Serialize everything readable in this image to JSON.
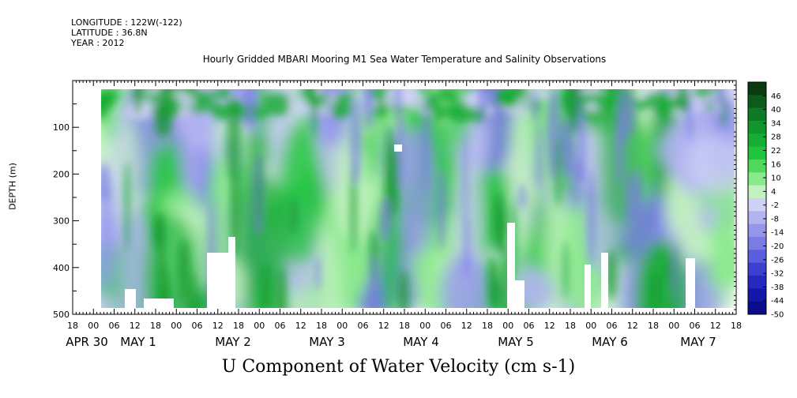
{
  "header": {
    "longitude": "LONGITUDE : 122W(-122)",
    "latitude": "LATITUDE : 36.8N",
    "year": "YEAR : 2012"
  },
  "chart_data": {
    "type": "heatmap",
    "title": "Hourly Gridded MBARI Mooring M1 Sea Water Temperature and Salinity Observations",
    "ylabel": "DEPTH (m)",
    "xlabel": "U Component of Water Velocity (cm s-1)",
    "y_axis": {
      "inverted": true,
      "ylim": [
        0,
        500
      ],
      "ticks": [
        100,
        200,
        300,
        400,
        500
      ],
      "tick_labels": [
        "100",
        "200",
        "300",
        "400",
        "500"
      ]
    },
    "x_axis": {
      "hour_ticks": [
        "18",
        "00",
        "06",
        "12",
        "18",
        "00",
        "06",
        "12",
        "18",
        "00",
        "06",
        "12",
        "18",
        "00",
        "06",
        "12",
        "18",
        "00",
        "06",
        "12",
        "18",
        "00",
        "06",
        "12",
        "18",
        "00",
        "06",
        "12",
        "18",
        "00",
        "06",
        "12",
        "18"
      ],
      "date_labels": [
        "APR 30",
        "MAY  1",
        "MAY  2",
        "MAY  3",
        "MAY  4",
        "MAY  5",
        "MAY  6",
        "MAY  7"
      ]
    },
    "colorbar": {
      "labels": [
        "46",
        "40",
        "34",
        "28",
        "22",
        "16",
        "10",
        "4",
        "-2",
        "-8",
        "-14",
        "-20",
        "-26",
        "-32",
        "-38",
        "-44",
        "-50"
      ],
      "range": [
        -50,
        52
      ],
      "colors": [
        "#0a3a12",
        "#0d5a1c",
        "#0f7a25",
        "#12962c",
        "#16ad33",
        "#1fc43c",
        "#4fd85c",
        "#8ae98c",
        "#c2f2bf",
        "#cfd1f6",
        "#b2b4f0",
        "#9496ea",
        "#7a7ce4",
        "#5c5fdd",
        "#3d3fd0",
        "#2629c0",
        "#1416a8",
        "#0a0c8c"
      ]
    }
  }
}
